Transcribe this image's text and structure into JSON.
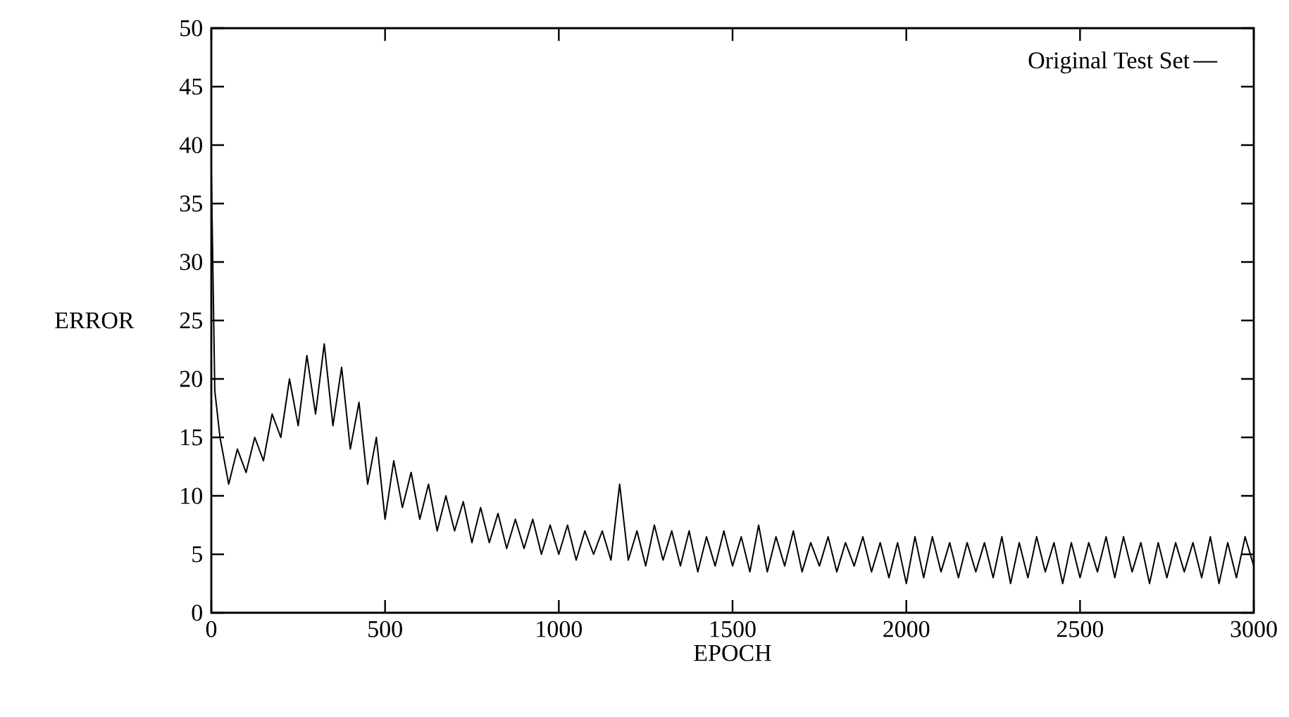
{
  "chart_data": {
    "type": "line",
    "xlabel": "EPOCH",
    "ylabel": "ERROR",
    "x": [
      0,
      10,
      25,
      50,
      75,
      100,
      125,
      150,
      175,
      200,
      225,
      250,
      275,
      300,
      325,
      350,
      375,
      400,
      425,
      450,
      475,
      500,
      525,
      550,
      575,
      600,
      625,
      650,
      675,
      700,
      725,
      750,
      775,
      800,
      825,
      850,
      875,
      900,
      925,
      950,
      975,
      1000,
      1025,
      1050,
      1075,
      1100,
      1125,
      1150,
      1175,
      1200,
      1225,
      1250,
      1275,
      1300,
      1325,
      1350,
      1375,
      1400,
      1425,
      1450,
      1475,
      1500,
      1525,
      1550,
      1575,
      1600,
      1625,
      1650,
      1675,
      1700,
      1725,
      1750,
      1775,
      1800,
      1825,
      1850,
      1875,
      1900,
      1925,
      1950,
      1975,
      2000,
      2025,
      2050,
      2075,
      2100,
      2125,
      2150,
      2175,
      2200,
      2225,
      2250,
      2275,
      2300,
      2325,
      2350,
      2375,
      2400,
      2425,
      2450,
      2475,
      2500,
      2525,
      2550,
      2575,
      2600,
      2625,
      2650,
      2675,
      2700,
      2725,
      2750,
      2775,
      2800,
      2825,
      2850,
      2875,
      2900,
      2925,
      2950,
      2975,
      3000
    ],
    "series": [
      {
        "name": "Original Test Set",
        "color": "#000000",
        "values": [
          38,
          19,
          15,
          11,
          14,
          12,
          15,
          13,
          17,
          15,
          20,
          16,
          22,
          17,
          23,
          16,
          21,
          14,
          18,
          11,
          15,
          8,
          13,
          9,
          12,
          8,
          11,
          7,
          10,
          7,
          9.5,
          6,
          9,
          6,
          8.5,
          5.5,
          8,
          5.5,
          8,
          5,
          7.5,
          5,
          7.5,
          4.5,
          7,
          5,
          7,
          4.5,
          11,
          4.5,
          7,
          4,
          7.5,
          4.5,
          7,
          4,
          7,
          3.5,
          6.5,
          4,
          7,
          4,
          6.5,
          3.5,
          7.5,
          3.5,
          6.5,
          4,
          7,
          3.5,
          6,
          4,
          6.5,
          3.5,
          6,
          4,
          6.5,
          3.5,
          6,
          3,
          6,
          2.5,
          6.5,
          3,
          6.5,
          3.5,
          6,
          3,
          6,
          3.5,
          6,
          3,
          6.5,
          2.5,
          6,
          3,
          6.5,
          3.5,
          6,
          2.5,
          6,
          3,
          6,
          3.5,
          6.5,
          3,
          6.5,
          3.5,
          6,
          2.5,
          6,
          3,
          6,
          3.5,
          6,
          3,
          6.5,
          2.5,
          6,
          3,
          6.5,
          4
        ]
      }
    ],
    "xlim": [
      0,
      3000
    ],
    "xticks": [
      0,
      500,
      1000,
      1500,
      2000,
      2500,
      3000
    ],
    "ylim": [
      0,
      50
    ],
    "yticks": [
      0,
      5,
      10,
      15,
      20,
      25,
      30,
      35,
      40,
      45,
      50
    ],
    "legend": "top right",
    "line_style": "solid"
  }
}
